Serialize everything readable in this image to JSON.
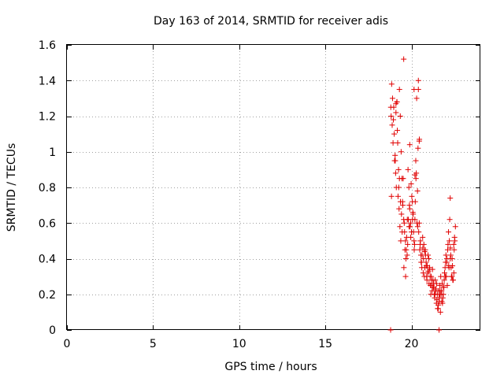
{
  "chart_data": {
    "type": "scatter",
    "title": "Day 163 of 2014, SRMTID for receiver adis",
    "xlabel": "GPS time / hours",
    "ylabel": "SRMTID / TECUs",
    "xlim": [
      0,
      24
    ],
    "ylim": [
      0,
      1.6
    ],
    "grid": true,
    "xticks": [
      0,
      5,
      10,
      15,
      20
    ],
    "xtick_labels": [
      "0",
      "5",
      "10",
      "15",
      "20"
    ],
    "yticks": [
      0,
      0.2,
      0.4,
      0.6,
      0.8,
      1.0,
      1.2,
      1.4,
      1.6
    ],
    "ytick_labels": [
      "0",
      "0.2",
      "0.4",
      "0.6",
      "0.8",
      "1",
      "1.2",
      "1.4",
      "1.6"
    ],
    "marker": "+",
    "color": "#e00000",
    "series": [
      {
        "name": "SRMTID",
        "x": [
          18.8,
          18.85,
          18.9,
          18.95,
          19.0,
          19.05,
          19.1,
          19.15,
          19.2,
          19.25,
          19.3,
          19.35,
          19.4,
          19.45,
          19.5,
          19.55,
          19.6,
          19.65,
          19.7,
          19.75,
          19.8,
          19.85,
          19.9,
          19.95,
          20.0,
          20.05,
          20.1,
          20.15,
          20.2,
          20.25,
          20.3,
          20.35,
          20.4,
          20.45,
          20.5,
          20.55,
          20.6,
          20.65,
          20.7,
          20.75,
          20.8,
          20.85,
          20.9,
          20.95,
          21.0,
          21.05,
          21.1,
          21.15,
          21.2,
          21.25,
          21.3,
          21.35,
          21.4,
          21.45,
          21.5,
          21.55,
          21.6,
          21.65,
          21.7,
          21.75,
          21.8,
          21.85,
          21.9,
          21.95,
          22.0,
          22.05,
          22.1,
          22.15,
          22.2,
          22.25,
          22.3,
          22.35,
          22.4,
          22.45,
          22.5,
          22.55,
          18.82,
          18.88,
          18.93,
          19.02,
          19.08,
          19.12,
          19.18,
          19.22,
          19.28,
          19.33,
          19.38,
          19.42,
          19.48,
          19.52,
          19.58,
          19.62,
          19.68,
          19.72,
          19.78,
          19.82,
          19.88,
          19.92,
          19.98,
          20.02,
          20.08,
          20.12,
          20.18,
          20.22,
          20.28,
          20.32,
          20.38,
          20.42,
          20.48,
          20.52,
          20.58,
          20.62,
          20.68,
          20.72,
          20.78,
          20.82,
          20.88,
          20.92,
          20.98,
          21.02,
          21.08,
          21.12,
          21.18,
          21.22,
          21.28,
          21.32,
          21.38,
          21.42,
          21.48,
          21.52,
          21.58,
          21.62,
          21.68,
          21.72,
          21.78,
          21.82,
          21.88,
          21.92,
          21.98,
          22.02,
          22.08,
          22.12,
          22.18,
          22.22,
          22.28,
          22.32,
          22.38,
          22.42,
          22.48,
          22.52,
          18.84,
          18.97,
          19.06,
          19.16,
          19.26,
          19.36,
          19.46,
          19.56,
          19.66,
          19.76,
          19.86,
          19.96,
          20.06,
          20.16,
          20.26,
          20.36,
          20.46,
          20.56,
          20.66,
          20.76,
          20.86,
          20.96,
          21.06,
          21.16,
          21.26,
          21.36,
          21.46,
          21.56,
          21.66,
          21.76,
          21.86,
          21.96,
          22.06,
          22.16,
          22.26,
          22.36,
          22.46,
          19.1,
          19.3,
          19.55,
          20.2,
          20.4,
          20.45,
          19.9,
          20.15,
          21.6,
          21.65,
          22.25,
          18.79
        ],
        "y": [
          1.25,
          1.38,
          1.3,
          1.18,
          1.1,
          0.98,
          1.22,
          1.28,
          1.05,
          0.9,
          1.35,
          1.2,
          1.0,
          0.85,
          0.7,
          0.62,
          0.55,
          0.5,
          0.45,
          0.42,
          0.9,
          0.8,
          0.68,
          0.6,
          0.55,
          0.72,
          0.65,
          0.5,
          0.62,
          0.95,
          1.3,
          0.78,
          1.4,
          0.6,
          0.48,
          0.42,
          0.35,
          0.52,
          0.4,
          0.3,
          0.45,
          0.38,
          0.28,
          0.32,
          0.4,
          0.35,
          0.25,
          0.3,
          0.22,
          0.28,
          0.24,
          0.18,
          0.22,
          0.15,
          0.2,
          0.12,
          0.18,
          0.25,
          0.3,
          0.22,
          0.15,
          0.2,
          0.28,
          0.35,
          0.42,
          0.38,
          0.45,
          0.55,
          0.5,
          0.4,
          0.35,
          0.3,
          0.28,
          0.48,
          0.52,
          0.58,
          1.2,
          1.15,
          1.05,
          0.95,
          0.88,
          0.8,
          1.12,
          0.75,
          0.68,
          0.58,
          0.5,
          0.65,
          0.72,
          0.85,
          0.6,
          0.45,
          0.4,
          0.52,
          0.48,
          0.62,
          0.7,
          0.58,
          0.82,
          0.75,
          0.66,
          0.55,
          0.48,
          0.72,
          0.88,
          0.6,
          1.02,
          0.55,
          0.45,
          0.5,
          0.38,
          0.42,
          0.32,
          0.48,
          0.35,
          0.42,
          0.3,
          0.36,
          0.33,
          0.26,
          0.3,
          0.2,
          0.25,
          0.34,
          0.26,
          0.2,
          0.28,
          0.23,
          0.17,
          0.12,
          0.22,
          0.16,
          0.1,
          0.2,
          0.26,
          0.18,
          0.24,
          0.32,
          0.38,
          0.3,
          0.25,
          0.48,
          0.35,
          0.62,
          0.42,
          0.3,
          0.36,
          0.28,
          0.45,
          0.5,
          0.75,
          1.25,
          0.95,
          1.28,
          0.8,
          0.72,
          0.55,
          0.35,
          0.3,
          0.62,
          0.58,
          0.52,
          0.62,
          0.45,
          0.85,
          0.58,
          1.07,
          0.38,
          0.46,
          0.44,
          0.36,
          0.42,
          0.34,
          0.28,
          0.24,
          0.2,
          0.26,
          0.14,
          0.22,
          0.16,
          0.24,
          0.3,
          0.4,
          0.36,
          0.46,
          0.4,
          0.32,
          1.27,
          0.85,
          1.52,
          0.87,
          1.35,
          1.06,
          1.04,
          1.35,
          0.0,
          0.2,
          0.74,
          0.0
        ]
      }
    ]
  }
}
